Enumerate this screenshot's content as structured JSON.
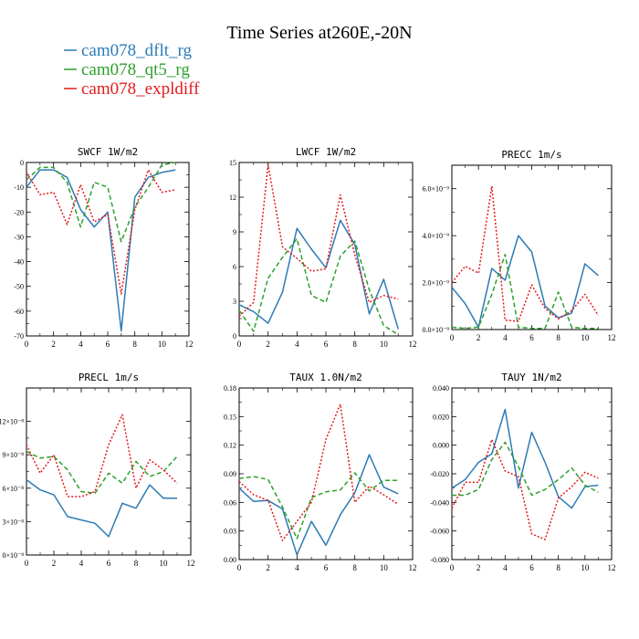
{
  "figure": {
    "title": "Time Series at260E,-20N",
    "legend": [
      {
        "label": "cam078_dflt_rg",
        "color": "#2c7bb6",
        "dash": "solid"
      },
      {
        "label": "cam078_qt5_rg",
        "color": "#2ca02c",
        "dash": "dash"
      },
      {
        "label": "cam078_expldiff",
        "color": "#e41a1c",
        "dash": "dot"
      }
    ]
  },
  "chart_data": [
    {
      "type": "line",
      "title": "SWCF   1W/m2",
      "x": [
        0,
        1,
        2,
        3,
        4,
        5,
        6,
        7,
        8,
        9,
        10,
        11
      ],
      "xlim": [
        0,
        12
      ],
      "xticks": [
        0,
        2,
        4,
        6,
        8,
        10,
        12
      ],
      "ylim": [
        -70,
        0
      ],
      "yticks": [
        -70,
        -60,
        -50,
        -40,
        -30,
        -20,
        -10,
        0
      ],
      "ytick_labels": [
        "-70",
        "-60",
        "-50",
        "-40",
        "-30",
        "-20",
        "-10",
        "0"
      ],
      "series": [
        {
          "name": "cam078_dflt_rg",
          "values": [
            -10,
            -3,
            -3,
            -6,
            -19,
            -26,
            -20,
            -68,
            -14,
            -6,
            -4,
            -3
          ]
        },
        {
          "name": "cam078_qt5_rg",
          "values": [
            -7,
            -2,
            -2,
            -8,
            -26,
            -8,
            -10,
            -32,
            -18,
            -10,
            -1,
            0
          ]
        },
        {
          "name": "cam078_expldiff",
          "values": [
            -4,
            -13,
            -12,
            -25,
            -9,
            -24,
            -21,
            -53,
            -19,
            -3,
            -12,
            -11
          ]
        }
      ]
    },
    {
      "type": "line",
      "title": "LWCF   1W/m2",
      "x": [
        0,
        1,
        2,
        3,
        4,
        5,
        6,
        7,
        8,
        9,
        10,
        11
      ],
      "xlim": [
        0,
        12
      ],
      "xticks": [
        0,
        2,
        4,
        6,
        8,
        10,
        12
      ],
      "ylim": [
        0,
        15
      ],
      "yticks": [
        0,
        3,
        6,
        9,
        12,
        15
      ],
      "ytick_labels": [
        "0",
        "3",
        "6",
        "9",
        "12",
        "15"
      ],
      "series": [
        {
          "name": "cam078_dflt_rg",
          "values": [
            2.7,
            2.1,
            1.1,
            3.8,
            9.3,
            7.5,
            5.9,
            10.0,
            7.9,
            1.9,
            4.9,
            0.6
          ]
        },
        {
          "name": "cam078_qt5_rg",
          "values": [
            2.2,
            0.4,
            5.0,
            6.8,
            8.4,
            3.5,
            2.9,
            6.9,
            8.2,
            4.0,
            0.9,
            0.1
          ]
        },
        {
          "name": "cam078_expldiff",
          "values": [
            1.7,
            2.9,
            14.8,
            7.7,
            6.7,
            5.6,
            5.8,
            12.2,
            7.0,
            2.9,
            3.5,
            3.2
          ]
        }
      ]
    },
    {
      "type": "line",
      "title": "PRECC   1m/s",
      "x": [
        0,
        1,
        2,
        3,
        4,
        5,
        6,
        7,
        8,
        9,
        10,
        11
      ],
      "xlim": [
        0,
        12
      ],
      "xticks": [
        0,
        2,
        4,
        6,
        8,
        10,
        12
      ],
      "ylim": [
        0,
        7e-09
      ],
      "yticks": [
        0,
        2e-09,
        4e-09,
        6e-09
      ],
      "ytick_labels": [
        "0.0×10⁻⁹",
        "2.0×10⁻⁹",
        "4.0×10⁻⁹",
        "6.0×10⁻⁹"
      ],
      "series": [
        {
          "name": "cam078_dflt_rg",
          "values": [
            1.8e-09,
            1.1e-09,
            1e-10,
            2.6e-09,
            2.1e-09,
            4e-09,
            3.3e-09,
            1e-09,
            5e-10,
            7e-10,
            2.8e-09,
            2.3e-09
          ]
        },
        {
          "name": "cam078_qt5_rg",
          "values": [
            1e-10,
            5e-11,
            1e-10,
            1.5e-09,
            3.2e-09,
            1e-10,
            5e-11,
            5e-11,
            1.6e-09,
            1e-10,
            5e-11,
            5e-11
          ]
        },
        {
          "name": "cam078_expldiff",
          "values": [
            2e-09,
            2.7e-09,
            2.4e-09,
            6.1e-09,
            4e-10,
            3.5e-10,
            1.9e-09,
            9e-10,
            4.5e-10,
            8e-10,
            1.5e-09,
            6e-10
          ]
        }
      ]
    },
    {
      "type": "line",
      "title": "PRECL   1m/s",
      "x": [
        0,
        1,
        2,
        3,
        4,
        5,
        6,
        7,
        8,
        9,
        10,
        11
      ],
      "xlim": [
        0,
        12
      ],
      "xticks": [
        0,
        2,
        4,
        6,
        8,
        10,
        12
      ],
      "ylim": [
        0,
        1.0
      ],
      "yticks": [
        0,
        0.2,
        0.4,
        0.6,
        0.8
      ],
      "ytick_labels": [
        "0×10⁻⁸",
        "3×10⁻⁸",
        "6×10⁻⁸",
        "9×10⁻⁸",
        "12×10⁻⁸"
      ],
      "series": [
        {
          "name": "cam078_dflt_rg",
          "values": [
            0.45,
            0.39,
            0.36,
            0.23,
            0.21,
            0.19,
            0.11,
            0.31,
            0.28,
            0.42,
            0.34,
            0.34
          ]
        },
        {
          "name": "cam078_qt5_rg",
          "values": [
            0.62,
            0.58,
            0.59,
            0.51,
            0.38,
            0.37,
            0.49,
            0.43,
            0.56,
            0.47,
            0.5,
            0.59
          ]
        },
        {
          "name": "cam078_expldiff",
          "values": [
            0.66,
            0.49,
            0.6,
            0.35,
            0.35,
            0.38,
            0.66,
            0.84,
            0.4,
            0.57,
            0.51,
            0.43
          ]
        }
      ]
    },
    {
      "type": "line",
      "title": "TAUX   1.0N/m2",
      "x": [
        0,
        1,
        2,
        3,
        4,
        5,
        6,
        7,
        8,
        9,
        10,
        11
      ],
      "xlim": [
        0,
        12
      ],
      "xticks": [
        0,
        2,
        4,
        6,
        8,
        10,
        12
      ],
      "ylim": [
        0,
        0.18
      ],
      "yticks": [
        0,
        0.03,
        0.06,
        0.09,
        0.12,
        0.15,
        0.18
      ],
      "ytick_labels": [
        "0.00",
        "0.03",
        "0.06",
        "0.09",
        "0.12",
        "0.15",
        "0.18"
      ],
      "series": [
        {
          "name": "cam078_dflt_rg",
          "values": [
            0.075,
            0.061,
            0.062,
            0.053,
            0.005,
            0.04,
            0.015,
            0.047,
            0.07,
            0.11,
            0.076,
            0.069
          ]
        },
        {
          "name": "cam078_qt5_rg",
          "values": [
            0.085,
            0.087,
            0.084,
            0.055,
            0.022,
            0.065,
            0.071,
            0.073,
            0.091,
            0.072,
            0.083,
            0.083
          ]
        },
        {
          "name": "cam078_expldiff",
          "values": [
            0.082,
            0.068,
            0.062,
            0.02,
            0.04,
            0.06,
            0.126,
            0.163,
            0.06,
            0.077,
            0.068,
            0.058
          ]
        }
      ]
    },
    {
      "type": "line",
      "title": "TAUY   1N/m2",
      "x": [
        0,
        1,
        2,
        3,
        4,
        5,
        6,
        7,
        8,
        9,
        10,
        11
      ],
      "xlim": [
        0,
        12
      ],
      "xticks": [
        0,
        2,
        4,
        6,
        8,
        10,
        12
      ],
      "ylim": [
        -0.08,
        0.04
      ],
      "yticks": [
        -0.08,
        -0.06,
        -0.04,
        -0.02,
        0,
        0.02,
        0.04
      ],
      "ytick_labels": [
        "-0.080",
        "-0.060",
        "-0.040",
        "-0.020",
        "0.000",
        "0.020",
        "0.040"
      ],
      "series": [
        {
          "name": "cam078_dflt_rg",
          "values": [
            -0.03,
            -0.024,
            -0.012,
            -0.006,
            0.025,
            -0.03,
            0.009,
            -0.012,
            -0.036,
            -0.044,
            -0.029,
            -0.028
          ]
        },
        {
          "name": "cam078_qt5_rg",
          "values": [
            -0.035,
            -0.035,
            -0.031,
            -0.01,
            0.002,
            -0.015,
            -0.035,
            -0.031,
            -0.024,
            -0.016,
            -0.028,
            -0.033
          ]
        },
        {
          "name": "cam078_expldiff",
          "values": [
            -0.044,
            -0.026,
            -0.026,
            0.004,
            -0.018,
            -0.022,
            -0.062,
            -0.066,
            -0.037,
            -0.029,
            -0.019,
            -0.023
          ]
        }
      ]
    }
  ]
}
